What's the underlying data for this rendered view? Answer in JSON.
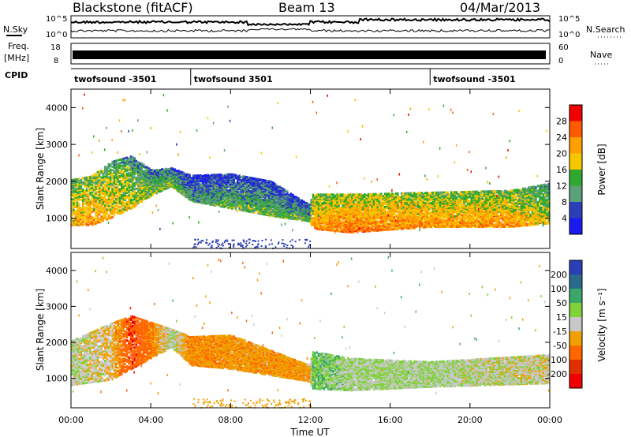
{
  "header": {
    "station": "Blackstone (fitACF)",
    "beam": "Beam 13",
    "date": "04/Mar/2013"
  },
  "noise_panel": {
    "left_label": "N.Sky",
    "right_label": "N.Search",
    "left_ticks": [
      "10^5",
      "10^0"
    ],
    "right_ticks": [
      "10^5",
      "10^0"
    ]
  },
  "freq_panel": {
    "left_label_1": "Freq.",
    "left_label_2": "[MHz]",
    "right_label": "Nave",
    "left_ticks": [
      "18",
      "8"
    ],
    "right_ticks": [
      "60",
      "0"
    ]
  },
  "cpid": {
    "label": "CPID",
    "segments": [
      {
        "start_hour": 0,
        "text": "twofsound -3501"
      },
      {
        "start_hour": 6,
        "text": "twofsound 3501"
      },
      {
        "start_hour": 18,
        "text": "twofsound -3501"
      }
    ]
  },
  "axes": {
    "ylabel": "Slant Range [km]",
    "xlabel": "Time UT",
    "yticks": [
      "1000",
      "2000",
      "3000",
      "4000"
    ],
    "xticks": [
      "00:00",
      "04:00",
      "08:00",
      "12:00",
      "16:00",
      "20:00",
      "00:00"
    ]
  },
  "power_scale": {
    "title": "Power [dB]",
    "ticks": [
      "28",
      "24",
      "20",
      "16",
      "12",
      "8",
      "4"
    ],
    "colors": [
      "#f00000",
      "#ff5a00",
      "#ff9f00",
      "#f5c800",
      "#2ea82e",
      "#5aa078",
      "#2a3fb5",
      "#1a1af0"
    ]
  },
  "velocity_scale": {
    "title": "Velocity [m s⁻¹]",
    "ticks": [
      "200",
      "100",
      "50",
      "15",
      "-15",
      "-50",
      "-100",
      "-200"
    ],
    "colors": [
      "#2a3fb5",
      "#2a6a8a",
      "#3aa76a",
      "#7fd23a",
      "#c8c8c8",
      "#f0a000",
      "#ff6600",
      "#e03000",
      "#f00000"
    ]
  },
  "chart_data": [
    {
      "type": "heatmap",
      "title": "Power",
      "xlabel": "Time UT",
      "ylabel": "Slant Range [km]",
      "xlim_hours": [
        0,
        24
      ],
      "ylim_km": [
        180,
        4500
      ],
      "colorbar_label": "Power [dB]",
      "colorbar_ticks": [
        4,
        8,
        12,
        16,
        20,
        24,
        28
      ],
      "bands": [
        {
          "t": 0.0,
          "low": 850,
          "high": 2100,
          "power": 18
        },
        {
          "t": 1.0,
          "low": 850,
          "high": 2200,
          "power": 20
        },
        {
          "t": 2.0,
          "low": 1050,
          "high": 2600,
          "power": 18
        },
        {
          "t": 3.0,
          "low": 1300,
          "high": 2750,
          "power": 16
        },
        {
          "t": 4.0,
          "low": 1650,
          "high": 2350,
          "power": 14
        },
        {
          "t": 5.0,
          "low": 1900,
          "high": 2400,
          "power": 14
        },
        {
          "t": 6.0,
          "low": 1500,
          "high": 2200,
          "power": 10
        },
        {
          "t": 8.0,
          "low": 1300,
          "high": 2250,
          "power": 12
        },
        {
          "t": 10.0,
          "low": 1100,
          "high": 2050,
          "power": 12
        },
        {
          "t": 11.9,
          "low": 950,
          "high": 1400,
          "power": 12
        },
        {
          "t": 12.1,
          "low": 750,
          "high": 1700,
          "power": 20
        },
        {
          "t": 14.0,
          "low": 650,
          "high": 1700,
          "power": 22
        },
        {
          "t": 18.0,
          "low": 800,
          "high": 1750,
          "power": 20
        },
        {
          "t": 22.0,
          "low": 800,
          "high": 1800,
          "power": 20
        },
        {
          "t": 24.0,
          "low": 900,
          "high": 2000,
          "power": 16
        }
      ]
    },
    {
      "type": "heatmap",
      "title": "Velocity",
      "xlabel": "Time UT",
      "ylabel": "Slant Range [km]",
      "xlim_hours": [
        0,
        24
      ],
      "ylim_km": [
        180,
        4500
      ],
      "colorbar_label": "Velocity [m s⁻¹]",
      "colorbar_ticks": [
        200,
        100,
        50,
        15,
        -15,
        -50,
        -100,
        -200
      ],
      "bands": [
        {
          "t": 0.0,
          "low": 850,
          "high": 2100,
          "velocity": -10
        },
        {
          "t": 2.0,
          "low": 1000,
          "high": 2600,
          "velocity": -30
        },
        {
          "t": 3.0,
          "low": 1300,
          "high": 2800,
          "velocity": -150
        },
        {
          "t": 5.0,
          "low": 1900,
          "high": 2400,
          "velocity": 0
        },
        {
          "t": 6.0,
          "low": 1400,
          "high": 2200,
          "velocity": -70
        },
        {
          "t": 8.0,
          "low": 1300,
          "high": 2250,
          "velocity": -60
        },
        {
          "t": 11.9,
          "low": 950,
          "high": 1400,
          "velocity": -60
        },
        {
          "t": 12.1,
          "low": 750,
          "high": 1800,
          "velocity": 30
        },
        {
          "t": 14.0,
          "low": 700,
          "high": 1600,
          "velocity": 0
        },
        {
          "t": 18.0,
          "low": 800,
          "high": 1500,
          "velocity": 0
        },
        {
          "t": 24.0,
          "low": 900,
          "high": 1700,
          "velocity": -20
        }
      ]
    }
  ]
}
